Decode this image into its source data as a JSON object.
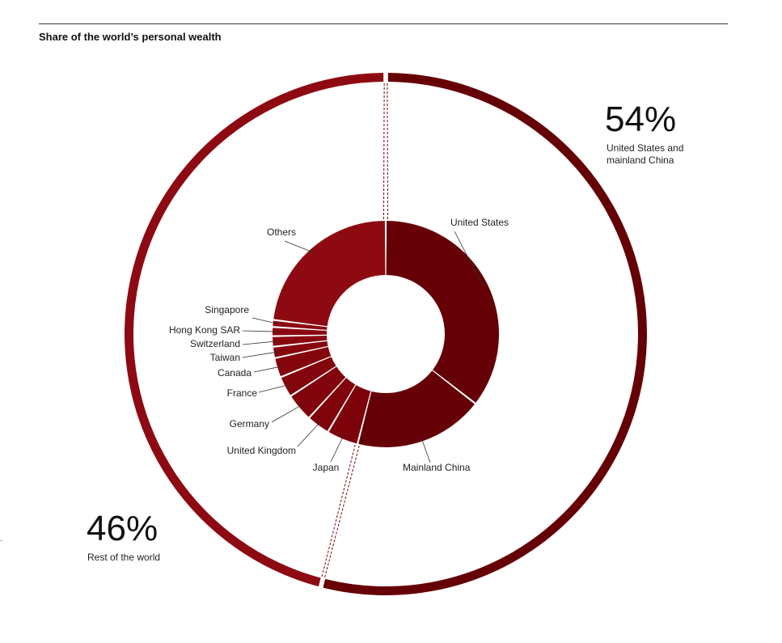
{
  "header": {
    "title": "Share of the world’s personal wealth"
  },
  "edge_mark": ".",
  "colors": {
    "dark": "#650006",
    "mid": "#7a0008",
    "light": "#8e0a12",
    "line": "#333333"
  },
  "chart_data": [
    {
      "type": "pie",
      "title": "Share of the world’s personal wealth",
      "ring": "outer",
      "categories": [
        "United States and mainland China",
        "Rest of the world"
      ],
      "values": [
        54,
        46
      ],
      "labels": [
        "54%",
        "46%"
      ],
      "sublabels": [
        [
          "United States and",
          "mainland China"
        ],
        [
          "Rest of the world"
        ]
      ]
    },
    {
      "type": "pie",
      "ring": "inner",
      "categories": [
        "United States",
        "Mainland China",
        "Japan",
        "United Kingdom",
        "Germany",
        "France",
        "Canada",
        "Taiwan",
        "Switzerland",
        "Hong Kong SAR",
        "Singapore",
        "Others"
      ],
      "values": [
        35.5,
        18.5,
        4.5,
        3.3,
        4.0,
        3.0,
        2.8,
        1.6,
        1.5,
        1.3,
        1.0,
        23.0
      ]
    }
  ]
}
